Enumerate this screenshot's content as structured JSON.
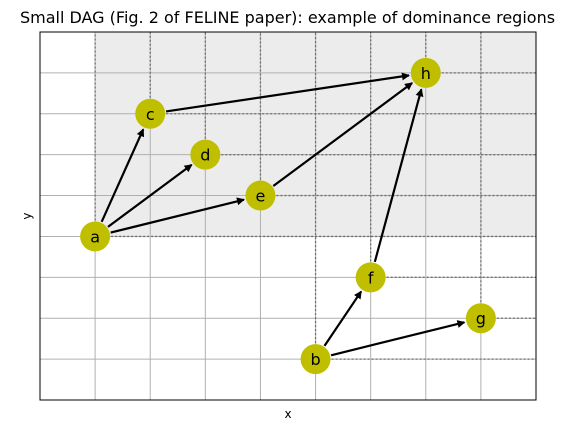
{
  "chart_data": {
    "type": "scatter",
    "title": "Small DAG (Fig. 2 of FELINE paper): example of dominance regions",
    "xlabel": "x",
    "ylabel": "y",
    "xlim": [
      0,
      9
    ],
    "ylim": [
      0,
      9
    ],
    "grid": true,
    "node_color": "#bfbf00",
    "region_color": "#ececec",
    "nodes": [
      {
        "name": "a",
        "x": 1,
        "y": 4
      },
      {
        "name": "b",
        "x": 5,
        "y": 1
      },
      {
        "name": "c",
        "x": 2,
        "y": 7
      },
      {
        "name": "d",
        "x": 3,
        "y": 6
      },
      {
        "name": "e",
        "x": 4,
        "y": 5
      },
      {
        "name": "f",
        "x": 6,
        "y": 3
      },
      {
        "name": "g",
        "x": 8,
        "y": 2
      },
      {
        "name": "h",
        "x": 7,
        "y": 8
      }
    ],
    "edges": [
      [
        "a",
        "c"
      ],
      [
        "a",
        "d"
      ],
      [
        "a",
        "e"
      ],
      [
        "c",
        "h"
      ],
      [
        "e",
        "h"
      ],
      [
        "b",
        "f"
      ],
      [
        "b",
        "g"
      ],
      [
        "f",
        "h"
      ]
    ],
    "dominance_region": "a"
  }
}
